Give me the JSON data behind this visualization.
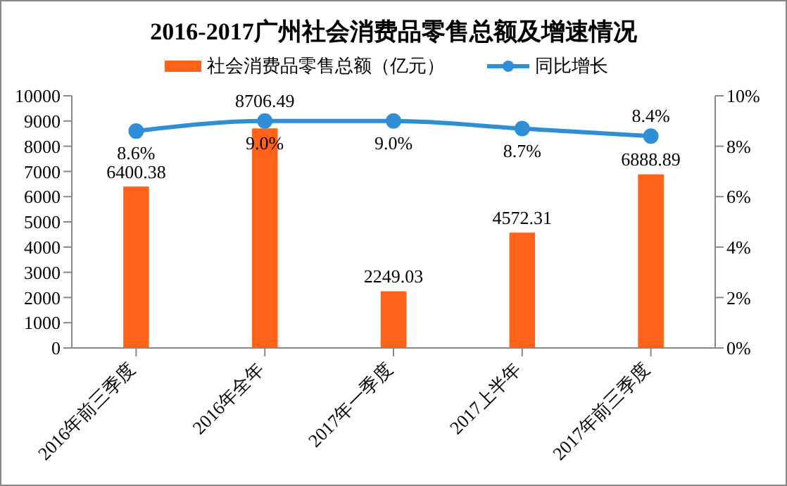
{
  "chart_data": {
    "type": "bar",
    "title": "2016-2017广州社会消费品零售总额及增速情况",
    "categories": [
      "2016年前三季度",
      "2016年全年",
      "2017年一季度",
      "2017上半年",
      "2017年前三季度"
    ],
    "series": [
      {
        "name": "社会消费品零售总额（亿元）",
        "color": "#ff6319",
        "values": [
          6400.38,
          8706.49,
          2249.03,
          4572.31,
          6888.89
        ],
        "value_labels": [
          "6400.38",
          "8706.49",
          "2249.03",
          "4572.31",
          "6888.89"
        ]
      },
      {
        "name": "同比增长",
        "type": "line",
        "axis": "y2",
        "color": "#2e8fd6",
        "values": [
          8.6,
          9.0,
          9.0,
          8.7,
          8.4
        ],
        "value_labels": [
          "8.6%",
          "9.0%",
          "9.0%",
          "8.7%",
          "8.4%"
        ]
      }
    ],
    "ylim": [
      0,
      10000
    ],
    "yticks": [
      0,
      1000,
      2000,
      3000,
      4000,
      5000,
      6000,
      7000,
      8000,
      9000,
      10000
    ],
    "y2lim": [
      0,
      10
    ],
    "y2ticks": [
      {
        "value": 0,
        "label": "0%"
      },
      {
        "value": 2,
        "label": "2%"
      },
      {
        "value": 4,
        "label": "4%"
      },
      {
        "value": 6,
        "label": "6%"
      },
      {
        "value": 8,
        "label": "8%"
      },
      {
        "value": 10,
        "label": "10%"
      }
    ],
    "legend": "top",
    "marker": "circle"
  }
}
